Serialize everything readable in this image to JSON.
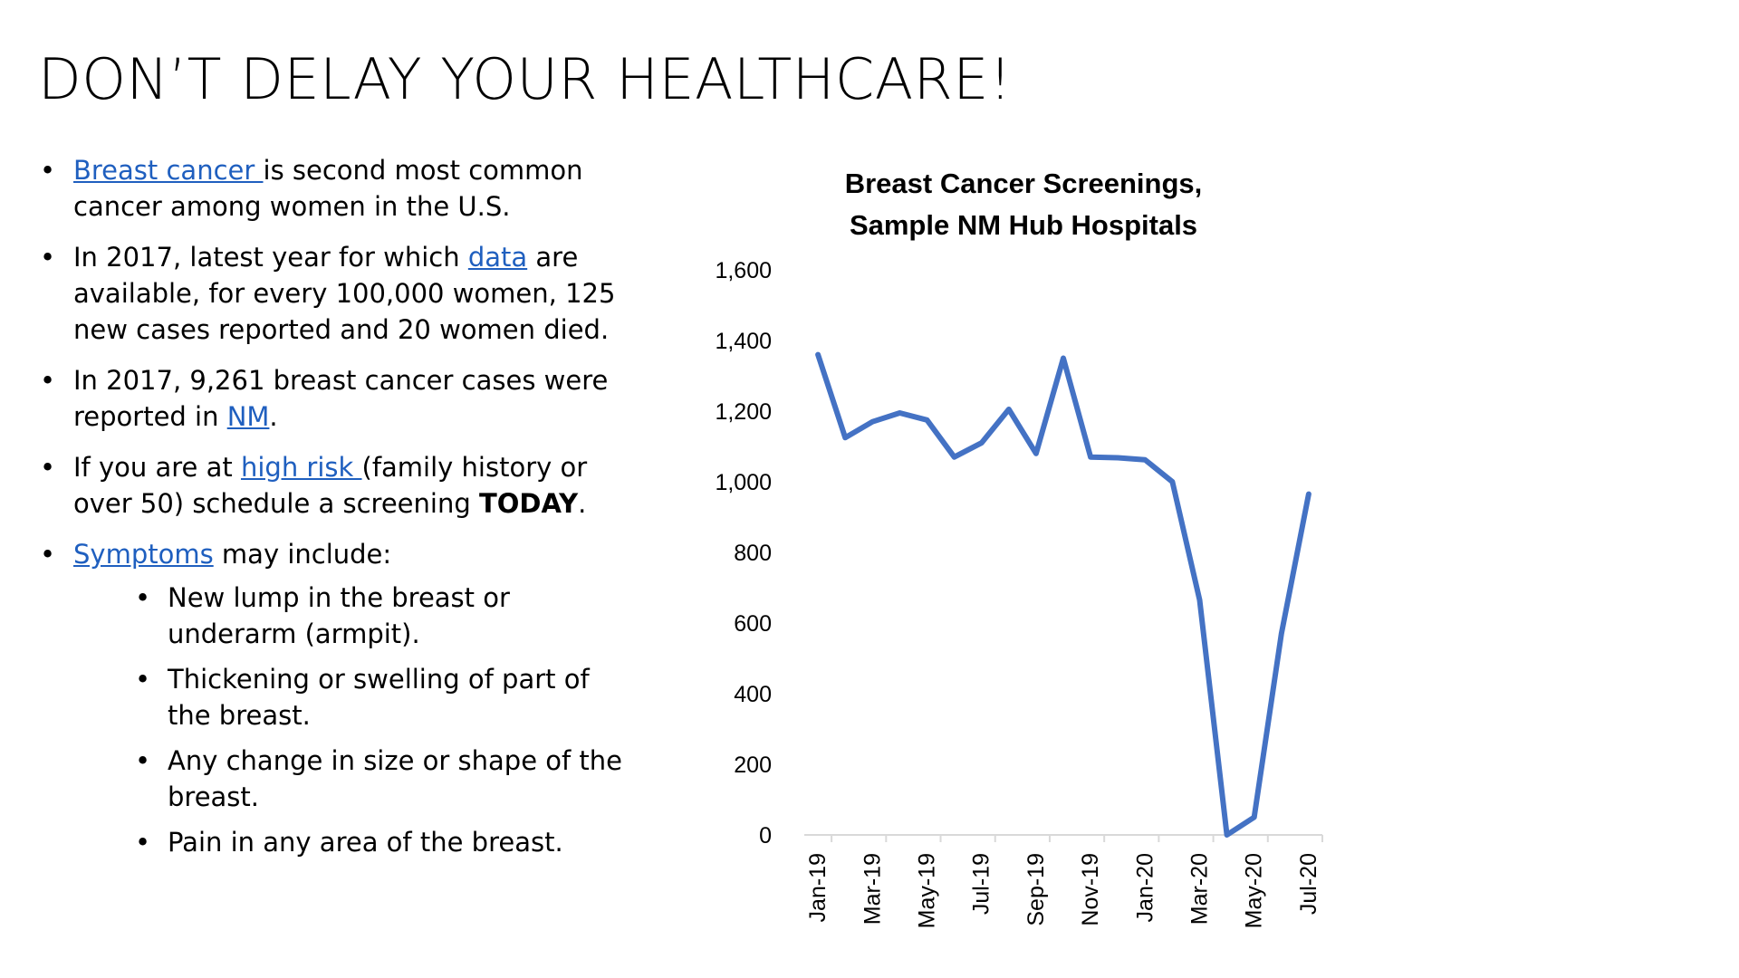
{
  "slide": {
    "title": "DON’T DELAY YOUR HEALTHCARE!"
  },
  "bullets": {
    "b1": {
      "link": "Breast cancer ",
      "rest": "is second most common cancer among women in the U.S."
    },
    "b2": {
      "pre": "In 2017, latest year for which ",
      "link": "data",
      "post": " are available, for every 100,000 women, 125 new cases reported and 20 women died."
    },
    "b3": {
      "pre": "In 2017, 9,261 breast cancer cases were reported in ",
      "link": "NM",
      "post": "."
    },
    "b4": {
      "pre": "If you are at ",
      "link": "high risk ",
      "mid": "(family history or over 50) schedule a screening ",
      "bold": "TODAY",
      "post": "."
    },
    "b5": {
      "link": "Symptoms",
      "post": " may include:",
      "sub": [
        "New lump in the breast or underarm (armpit).",
        "Thickening or swelling of part of the breast.",
        "Any change in size or shape of the breast.",
        "Pain in any area of the breast."
      ]
    }
  },
  "colors": {
    "link": "#1f5fbf",
    "line": "#4472c4",
    "axis": "#d9d9d9"
  },
  "chart_data": {
    "type": "line",
    "title_line1": "Breast Cancer Screenings,",
    "title_line2": "Sample NM Hub Hospitals",
    "xlabel": "",
    "ylabel": "",
    "ylim": [
      0,
      1600
    ],
    "y_ticks": [
      "0",
      "200",
      "400",
      "600",
      "800",
      "1,000",
      "1,200",
      "1,400",
      "1,600"
    ],
    "y_tick_values": [
      0,
      200,
      400,
      600,
      800,
      1000,
      1200,
      1400,
      1600
    ],
    "categories": [
      "Jan-19",
      "Feb-19",
      "Mar-19",
      "Apr-19",
      "May-19",
      "Jun-19",
      "Jul-19",
      "Aug-19",
      "Sep-19",
      "Oct-19",
      "Nov-19",
      "Dec-19",
      "Jan-20",
      "Feb-20",
      "Mar-20",
      "Apr-20",
      "May-20",
      "Jun-20",
      "Jul-20"
    ],
    "x_tick_labels": [
      "Jan-19",
      "",
      "Mar-19",
      "",
      "May-19",
      "",
      "Jul-19",
      "",
      "Sep-19",
      "",
      "Nov-19",
      "",
      "Jan-20",
      "",
      "Mar-20",
      "",
      "May-20",
      "",
      "Jul-20"
    ],
    "series": [
      {
        "values": [
          1360,
          1125,
          1170,
          1195,
          1175,
          1070,
          1110,
          1205,
          1080,
          1350,
          1070,
          1068,
          1062,
          1000,
          665,
          0,
          50,
          570,
          965
        ]
      }
    ],
    "grid": false,
    "legend": "none"
  }
}
